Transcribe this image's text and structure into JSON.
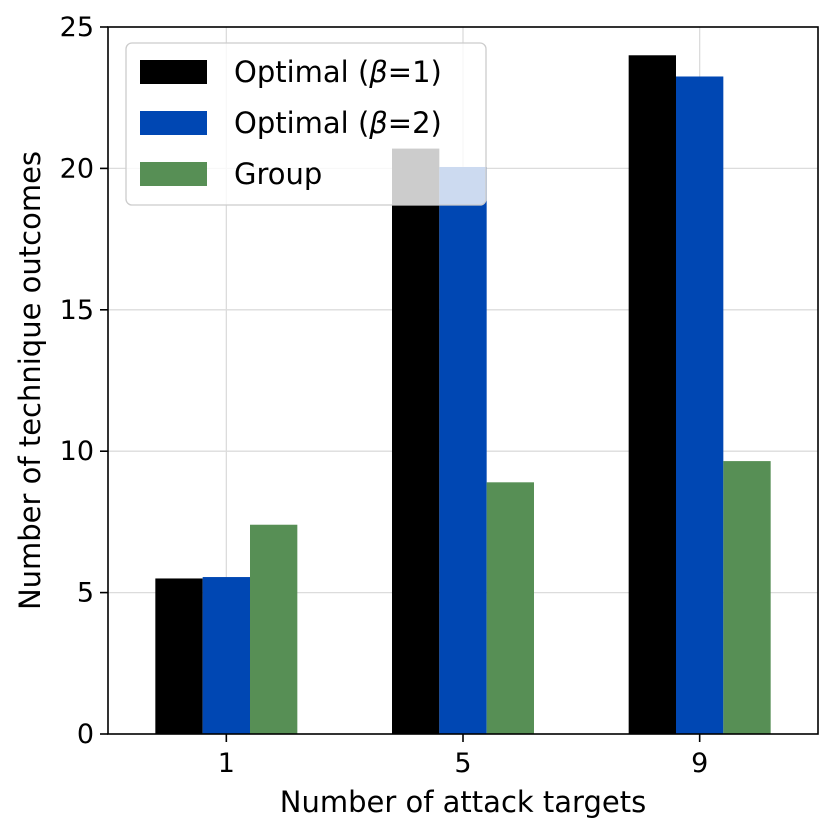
{
  "chart_data": {
    "type": "bar",
    "title": "",
    "xlabel": "Number of attack targets",
    "ylabel": "Number of technique outcomes",
    "categories": [
      "1",
      "5",
      "9"
    ],
    "series": [
      {
        "name_prefix": "Optimal (",
        "name_symbol": "β",
        "name_suffix": "=1)",
        "color": "#000000",
        "values": [
          5.5,
          20.7,
          24.0
        ]
      },
      {
        "name_prefix": "Optimal (",
        "name_symbol": "β",
        "name_suffix": "=2)",
        "color": "#0047b3",
        "values": [
          5.55,
          20.05,
          23.25
        ]
      },
      {
        "name_prefix": "Group",
        "name_symbol": "",
        "name_suffix": "",
        "color": "#578f55",
        "values": [
          7.4,
          8.9,
          9.65
        ]
      }
    ],
    "ylim": [
      0,
      25
    ],
    "yticks": [
      0,
      5,
      10,
      15,
      20,
      25
    ],
    "grid": true,
    "legend_position": "top-left"
  }
}
